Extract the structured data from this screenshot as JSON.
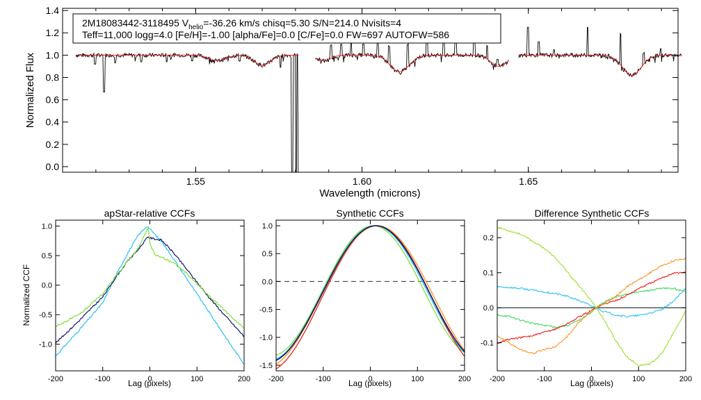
{
  "spectrum": {
    "header_line1_pre": "2M18083442-3118495  V",
    "header_line1_sub": "helio",
    "header_line1_post": "=-36.26 km/s  chisq=5.30  S/N=214.0  Nvisits=4",
    "header_line2": "Teff=11,000 logg=4.0 [Fe/H]=-1.00 [alpha/Fe]=0.0 [C/Fe]=0.0 FW=697 AUTOFW=586"
  },
  "chart_data": [
    {
      "type": "line",
      "title": "",
      "xlabel": "Wavelength (microns)",
      "ylabel": "Normalized Flux",
      "xlim": [
        1.51,
        1.695
      ],
      "ylim": [
        -0.05,
        1.42
      ],
      "xticks": [
        1.55,
        1.6,
        1.65
      ],
      "xtick_labels": [
        "1.55",
        "1.60",
        "1.65"
      ],
      "yticks": [
        0.0,
        0.2,
        0.4,
        0.6,
        0.8,
        1.0,
        1.2,
        1.4
      ],
      "ytick_labels": [
        "0.0",
        "0.2",
        "0.4",
        "0.6",
        "0.8",
        "1.0",
        "1.2",
        "1.4"
      ],
      "chip_ranges": [
        [
          1.514,
          1.581
        ],
        [
          1.586,
          1.644
        ],
        [
          1.647,
          1.696
        ]
      ],
      "absorption_lines": [
        {
          "center": 1.5565,
          "depth": 0.05,
          "width": 0.0035
        },
        {
          "center": 1.5701,
          "depth": 0.09,
          "width": 0.0035
        },
        {
          "center": 1.5885,
          "depth": 0.05,
          "width": 0.003
        },
        {
          "center": 1.6113,
          "depth": 0.15,
          "width": 0.004
        },
        {
          "center": 1.6412,
          "depth": 0.1,
          "width": 0.0035
        },
        {
          "center": 1.6811,
          "depth": 0.18,
          "width": 0.004
        }
      ],
      "emission_spikes": [
        {
          "x": 1.5907,
          "h": 0.12
        },
        {
          "x": 1.5937,
          "h": 0.1
        },
        {
          "x": 1.5967,
          "h": 0.12
        },
        {
          "x": 1.6004,
          "h": 0.1
        },
        {
          "x": 1.6048,
          "h": 0.12
        },
        {
          "x": 1.6081,
          "h": 0.16
        },
        {
          "x": 1.6137,
          "h": 0.2
        },
        {
          "x": 1.6195,
          "h": 0.15
        },
        {
          "x": 1.6245,
          "h": 0.12
        },
        {
          "x": 1.6282,
          "h": 0.15
        },
        {
          "x": 1.6337,
          "h": 0.18
        },
        {
          "x": 1.6376,
          "h": 0.12
        },
        {
          "x": 1.6407,
          "h": 0.06
        },
        {
          "x": 1.6499,
          "h": 0.25
        },
        {
          "x": 1.6531,
          "h": 0.12
        },
        {
          "x": 1.6577,
          "h": 0.05
        },
        {
          "x": 1.6678,
          "h": 0.25
        },
        {
          "x": 1.6777,
          "h": 0.28
        },
        {
          "x": 1.6847,
          "h": 0.1
        },
        {
          "x": 1.6898,
          "h": 0.06
        }
      ],
      "dips": [
        {
          "x": 1.5225,
          "depth": 0.33
        },
        {
          "x": 1.5197,
          "depth": 0.08
        },
        {
          "x": 1.5258,
          "depth": 0.07
        },
        {
          "x": 1.5336,
          "depth": 0.06
        },
        {
          "x": 1.5413,
          "depth": 0.06
        },
        {
          "x": 1.5489,
          "depth": 0.05
        },
        {
          "x": 1.5632,
          "depth": 0.05
        },
        {
          "x": 1.5755,
          "depth": 0.1
        }
      ],
      "gap_drops": [
        {
          "x": 1.579,
          "to": -0.05
        },
        {
          "x": 1.5802,
          "to": -0.05
        },
        {
          "x": 1.5809,
          "to": -0.05
        }
      ],
      "series": [
        {
          "name": "observed",
          "color": "#000000"
        },
        {
          "name": "model",
          "color": "#e8201a"
        }
      ]
    },
    {
      "type": "line",
      "title": "apStar-relative CCFs",
      "xlabel": "Lag (pixels)",
      "ylabel": "Normalized CCF",
      "xlim": [
        -200,
        200
      ],
      "ylim": [
        -1.45,
        1.1
      ],
      "xticks": [
        -200,
        -100,
        0,
        100,
        200
      ],
      "xtick_labels": [
        "-200",
        "-100",
        "0",
        "100",
        "200"
      ],
      "yticks": [
        -1.0,
        -0.5,
        0.0,
        0.5,
        1.0
      ],
      "ytick_labels": [
        "-1.0",
        "-0.5",
        "0.0",
        "0.5",
        "1.0"
      ],
      "series": [
        {
          "name": "cyan",
          "color": "#29c1f0",
          "x": [
            -200,
            -150,
            -100,
            -75,
            -50,
            -25,
            -6,
            0,
            25,
            50,
            75,
            100,
            125,
            150,
            175,
            200
          ],
          "y": [
            -1.2,
            -0.76,
            -0.3,
            0.12,
            0.5,
            0.84,
            1.0,
            0.95,
            0.74,
            0.45,
            0.15,
            -0.15,
            -0.45,
            -0.75,
            -1.05,
            -1.33
          ]
        },
        {
          "name": "navy",
          "color": "#14146e",
          "x": [
            -200,
            -150,
            -100,
            -75,
            -50,
            -25,
            -4,
            0,
            25,
            50,
            75,
            100,
            125,
            150,
            175,
            200
          ],
          "y": [
            -0.98,
            -0.6,
            -0.2,
            0.1,
            0.38,
            0.6,
            0.82,
            0.8,
            0.76,
            0.55,
            0.3,
            0.05,
            -0.2,
            -0.43,
            -0.65,
            -0.87
          ]
        },
        {
          "name": "green",
          "color": "#7ee03a",
          "x": [
            -200,
            -150,
            -100,
            -75,
            -50,
            -25,
            -3,
            0,
            10,
            25,
            50,
            75,
            100,
            125,
            150,
            175,
            200
          ],
          "y": [
            -0.7,
            -0.5,
            -0.15,
            0.12,
            0.38,
            0.62,
            0.98,
            0.7,
            0.52,
            0.47,
            0.38,
            0.22,
            0.02,
            -0.18,
            -0.36,
            -0.55,
            -0.73
          ]
        }
      ]
    },
    {
      "type": "line",
      "title": "Synthetic CCFs",
      "xlabel": "Lag (pixels)",
      "ylabel": "",
      "xlim": [
        -200,
        200
      ],
      "ylim": [
        -1.6,
        1.1
      ],
      "xticks": [
        -200,
        -100,
        0,
        100,
        200
      ],
      "xtick_labels": [
        "-200",
        "-100",
        "0",
        "100",
        "200"
      ],
      "yticks": [
        -1.5,
        -1.0,
        -0.5,
        0.0,
        0.5,
        1.0
      ],
      "ytick_labels": [
        "-1.5",
        "-1.0",
        "-0.5",
        "0.0",
        "0.5",
        "1.0"
      ],
      "zero_line": "dashed",
      "series": [
        {
          "name": "green",
          "color": "#7ee03a",
          "center": 6,
          "halfwidth": 108,
          "ymin": -1.33
        },
        {
          "name": "cyan",
          "color": "#29c1f0",
          "center": 10,
          "halfwidth": 113,
          "ymin": -1.42
        },
        {
          "name": "red",
          "color": "#e8201a",
          "center": 14,
          "halfwidth": 118,
          "ymin": -1.62
        },
        {
          "name": "orange",
          "color": "#f7941d",
          "center": 15,
          "halfwidth": 120,
          "ymin": -1.55
        },
        {
          "name": "navy",
          "color": "#14146e",
          "center": 12,
          "halfwidth": 115,
          "ymin": -1.45
        }
      ]
    },
    {
      "type": "line",
      "title": "Difference Synthetic CCFs",
      "xlabel": "Lag (pixels)",
      "ylabel": "",
      "xlim": [
        -200,
        200
      ],
      "ylim": [
        -0.18,
        0.25
      ],
      "xticks": [
        -200,
        -100,
        0,
        100,
        200
      ],
      "xtick_labels": [
        "-200",
        "-100",
        "0",
        "100",
        "200"
      ],
      "yticks": [
        -0.1,
        0.0,
        0.1,
        0.2
      ],
      "ytick_labels": [
        "-0.1",
        "0.0",
        "0.1",
        "0.2"
      ],
      "zero_line": "solid",
      "series": [
        {
          "name": "yellow-green",
          "color": "#9bdc2a",
          "x": [
            -200,
            -175,
            -150,
            -125,
            -100,
            -75,
            -50,
            -25,
            0,
            10,
            25,
            50,
            75,
            100,
            125,
            150,
            175,
            200
          ],
          "y": [
            0.23,
            0.22,
            0.21,
            0.19,
            0.17,
            0.14,
            0.1,
            0.06,
            0.02,
            0.0,
            -0.03,
            -0.09,
            -0.14,
            -0.165,
            -0.16,
            -0.13,
            -0.07,
            -0.01
          ]
        },
        {
          "name": "cyan",
          "color": "#29c1f0",
          "x": [
            -200,
            -175,
            -150,
            -125,
            -100,
            -75,
            -50,
            -25,
            0,
            10,
            25,
            50,
            75,
            100,
            125,
            150,
            175,
            200
          ],
          "y": [
            0.06,
            0.058,
            0.055,
            0.05,
            0.045,
            0.04,
            0.032,
            0.02,
            0.005,
            0.0,
            -0.01,
            -0.02,
            -0.025,
            -0.022,
            -0.015,
            -0.005,
            0.02,
            0.055
          ]
        },
        {
          "name": "green",
          "color": "#3dd65c",
          "x": [
            -200,
            -175,
            -150,
            -125,
            -100,
            -75,
            -50,
            -25,
            0,
            10,
            25,
            50,
            75,
            100,
            125,
            150,
            175,
            200
          ],
          "y": [
            -0.02,
            -0.025,
            -0.035,
            -0.045,
            -0.05,
            -0.055,
            -0.05,
            -0.035,
            -0.012,
            0.0,
            0.015,
            0.03,
            0.04,
            0.045,
            0.05,
            0.055,
            0.055,
            0.045
          ]
        },
        {
          "name": "red",
          "color": "#e8201a",
          "x": [
            -200,
            -175,
            -150,
            -125,
            -100,
            -75,
            -50,
            -25,
            0,
            10,
            25,
            50,
            75,
            100,
            125,
            150,
            175,
            200
          ],
          "y": [
            -0.1,
            -0.09,
            -0.085,
            -0.08,
            -0.07,
            -0.06,
            -0.045,
            -0.025,
            -0.008,
            0.0,
            0.01,
            0.02,
            0.035,
            0.055,
            0.07,
            0.085,
            0.1,
            0.1
          ]
        },
        {
          "name": "orange",
          "color": "#f7941d",
          "x": [
            -200,
            -175,
            -150,
            -125,
            -100,
            -75,
            -50,
            -25,
            0,
            10,
            25,
            50,
            75,
            100,
            125,
            150,
            175,
            200
          ],
          "y": [
            -0.08,
            -0.1,
            -0.12,
            -0.13,
            -0.12,
            -0.11,
            -0.08,
            -0.04,
            -0.01,
            0.0,
            0.01,
            0.03,
            0.06,
            0.08,
            0.1,
            0.12,
            0.135,
            0.14
          ]
        }
      ]
    }
  ]
}
